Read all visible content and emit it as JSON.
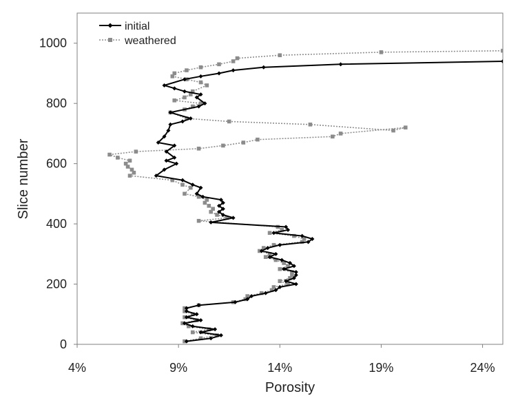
{
  "chart_data": {
    "type": "line",
    "xlabel": "Porosity",
    "ylabel": "Slice number",
    "xlim": [
      0.04,
      0.25
    ],
    "ylim": [
      0,
      1100
    ],
    "x_ticks": [
      0.04,
      0.09,
      0.14,
      0.19,
      0.24
    ],
    "x_tick_labels": [
      "4%",
      "9%",
      "14%",
      "19%",
      "24%"
    ],
    "y_ticks": [
      0,
      200,
      400,
      600,
      800,
      1000
    ],
    "y_tick_labels": [
      "0",
      "200",
      "400",
      "600",
      "800",
      "1000"
    ],
    "grid": false,
    "legend_position": "top-left",
    "series": [
      {
        "name": "initial",
        "color": "#000000",
        "line_style": "solid",
        "marker": "diamond",
        "points": [
          [
            0.094,
            10
          ],
          [
            0.106,
            20
          ],
          [
            0.111,
            30
          ],
          [
            0.101,
            40
          ],
          [
            0.108,
            50
          ],
          [
            0.097,
            60
          ],
          [
            0.093,
            70
          ],
          [
            0.101,
            80
          ],
          [
            0.094,
            90
          ],
          [
            0.099,
            100
          ],
          [
            0.094,
            110
          ],
          [
            0.094,
            120
          ],
          [
            0.1,
            130
          ],
          [
            0.118,
            140
          ],
          [
            0.124,
            150
          ],
          [
            0.126,
            160
          ],
          [
            0.133,
            170
          ],
          [
            0.138,
            180
          ],
          [
            0.14,
            190
          ],
          [
            0.148,
            200
          ],
          [
            0.143,
            210
          ],
          [
            0.147,
            220
          ],
          [
            0.148,
            230
          ],
          [
            0.148,
            240
          ],
          [
            0.142,
            250
          ],
          [
            0.147,
            260
          ],
          [
            0.145,
            270
          ],
          [
            0.141,
            280
          ],
          [
            0.135,
            290
          ],
          [
            0.138,
            300
          ],
          [
            0.131,
            310
          ],
          [
            0.134,
            320
          ],
          [
            0.14,
            330
          ],
          [
            0.154,
            340
          ],
          [
            0.156,
            350
          ],
          [
            0.151,
            360
          ],
          [
            0.137,
            370
          ],
          [
            0.144,
            380
          ],
          [
            0.143,
            390
          ],
          [
            0.106,
            405
          ],
          [
            0.117,
            420
          ],
          [
            0.112,
            430
          ],
          [
            0.11,
            440
          ],
          [
            0.112,
            450
          ],
          [
            0.11,
            460
          ],
          [
            0.112,
            470
          ],
          [
            0.111,
            480
          ],
          [
            0.102,
            490
          ],
          [
            0.099,
            500
          ],
          [
            0.101,
            520
          ],
          [
            0.097,
            530
          ],
          [
            0.092,
            545
          ],
          [
            0.079,
            560
          ],
          [
            0.083,
            580
          ],
          [
            0.089,
            600
          ],
          [
            0.084,
            610
          ],
          [
            0.088,
            620
          ],
          [
            0.084,
            640
          ],
          [
            0.088,
            660
          ],
          [
            0.08,
            670
          ],
          [
            0.083,
            690
          ],
          [
            0.085,
            710
          ],
          [
            0.086,
            730
          ],
          [
            0.092,
            740
          ],
          [
            0.096,
            750
          ],
          [
            0.086,
            770
          ],
          [
            0.1,
            790
          ],
          [
            0.103,
            800
          ],
          [
            0.099,
            820
          ],
          [
            0.101,
            830
          ],
          [
            0.093,
            840
          ],
          [
            0.088,
            850
          ],
          [
            0.083,
            860
          ],
          [
            0.093,
            880
          ],
          [
            0.101,
            890
          ],
          [
            0.11,
            900
          ],
          [
            0.117,
            910
          ],
          [
            0.132,
            920
          ],
          [
            0.17,
            930
          ],
          [
            0.25,
            940
          ]
        ]
      },
      {
        "name": "weathered",
        "color": "#8c8c8c",
        "line_style": "dotted",
        "marker": "square",
        "points": [
          [
            0.093,
            10
          ],
          [
            0.101,
            20
          ],
          [
            0.109,
            30
          ],
          [
            0.097,
            40
          ],
          [
            0.105,
            50
          ],
          [
            0.095,
            60
          ],
          [
            0.092,
            70
          ],
          [
            0.099,
            80
          ],
          [
            0.093,
            90
          ],
          [
            0.097,
            100
          ],
          [
            0.093,
            110
          ],
          [
            0.093,
            120
          ],
          [
            0.1,
            130
          ],
          [
            0.117,
            140
          ],
          [
            0.123,
            150
          ],
          [
            0.124,
            160
          ],
          [
            0.131,
            170
          ],
          [
            0.136,
            180
          ],
          [
            0.137,
            190
          ],
          [
            0.144,
            200
          ],
          [
            0.14,
            210
          ],
          [
            0.145,
            220
          ],
          [
            0.146,
            230
          ],
          [
            0.146,
            240
          ],
          [
            0.14,
            250
          ],
          [
            0.144,
            260
          ],
          [
            0.142,
            270
          ],
          [
            0.138,
            280
          ],
          [
            0.133,
            290
          ],
          [
            0.135,
            300
          ],
          [
            0.13,
            310
          ],
          [
            0.132,
            320
          ],
          [
            0.137,
            330
          ],
          [
            0.151,
            340
          ],
          [
            0.152,
            350
          ],
          [
            0.147,
            360
          ],
          [
            0.135,
            370
          ],
          [
            0.141,
            380
          ],
          [
            0.139,
            390
          ],
          [
            0.1,
            410
          ],
          [
            0.114,
            420
          ],
          [
            0.109,
            430
          ],
          [
            0.106,
            440
          ],
          [
            0.107,
            450
          ],
          [
            0.105,
            460
          ],
          [
            0.103,
            470
          ],
          [
            0.104,
            480
          ],
          [
            0.1,
            490
          ],
          [
            0.093,
            500
          ],
          [
            0.096,
            520
          ],
          [
            0.092,
            530
          ],
          [
            0.087,
            545
          ],
          [
            0.066,
            560
          ],
          [
            0.068,
            570
          ],
          [
            0.067,
            580
          ],
          [
            0.065,
            590
          ],
          [
            0.064,
            600
          ],
          [
            0.066,
            610
          ],
          [
            0.06,
            620
          ],
          [
            0.056,
            630
          ],
          [
            0.069,
            640
          ],
          [
            0.1,
            650
          ],
          [
            0.112,
            660
          ],
          [
            0.122,
            670
          ],
          [
            0.129,
            680
          ],
          [
            0.166,
            690
          ],
          [
            0.17,
            700
          ],
          [
            0.202,
            720
          ],
          [
            0.196,
            710
          ],
          [
            0.155,
            730
          ],
          [
            0.115,
            740
          ],
          [
            0.094,
            750
          ],
          [
            0.086,
            770
          ],
          [
            0.093,
            780
          ],
          [
            0.097,
            790
          ],
          [
            0.101,
            800
          ],
          [
            0.088,
            810
          ],
          [
            0.093,
            820
          ],
          [
            0.096,
            830
          ],
          [
            0.097,
            840
          ],
          [
            0.104,
            860
          ],
          [
            0.101,
            870
          ],
          [
            0.094,
            880
          ],
          [
            0.087,
            890
          ],
          [
            0.088,
            900
          ],
          [
            0.094,
            910
          ],
          [
            0.101,
            920
          ],
          [
            0.11,
            930
          ],
          [
            0.117,
            940
          ],
          [
            0.119,
            950
          ],
          [
            0.14,
            960
          ],
          [
            0.19,
            970
          ],
          [
            0.25,
            975
          ]
        ]
      }
    ]
  }
}
